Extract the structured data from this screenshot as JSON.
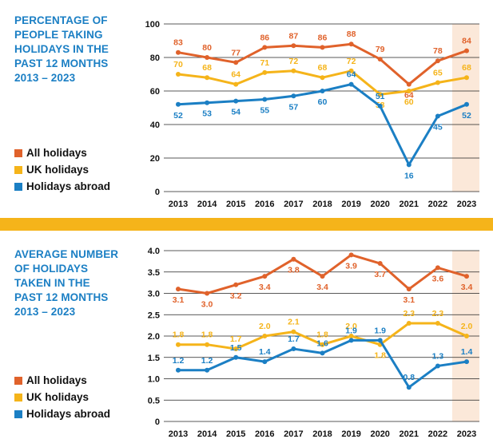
{
  "colors": {
    "all": "#e0622b",
    "uk": "#f5b41a",
    "abroad": "#1b7fc4",
    "highlight": "#fbe8d9",
    "grid": "#222222"
  },
  "charts": [
    {
      "title": "PERCENTAGE OF\nPEOPLE TAKING\nHOLIDAYS IN THE\nPAST 12 MONTHS\n2013 – 2023",
      "legend": [
        "All holidays",
        "UK holidays",
        "Holidays abroad"
      ]
    },
    {
      "title": "AVERAGE NUMBER\nOF HOLIDAYS\nTAKEN IN THE\nPAST 12 MONTHS\n2013 – 2023",
      "legend": [
        "All holidays",
        "UK holidays",
        "Holidays abroad"
      ]
    }
  ],
  "chart_data": [
    {
      "type": "line",
      "title": "PERCENTAGE OF PEOPLE TAKING HOLIDAYS IN THE PAST 12 MONTHS 2013 – 2023",
      "categories": [
        "2013",
        "2014",
        "2015",
        "2016",
        "2017",
        "2018",
        "2019",
        "2020",
        "2021",
        "2022",
        "2023"
      ],
      "ylim": [
        0,
        100
      ],
      "yticks": [
        "0",
        "20",
        "40",
        "60",
        "80",
        "100"
      ],
      "highlight": "2023",
      "series": [
        {
          "name": "All holidays",
          "key": "all",
          "values": [
            83,
            80,
            77,
            86,
            87,
            86,
            88,
            79,
            64,
            78,
            84
          ],
          "labels": [
            "83",
            "80",
            "77",
            "86",
            "87",
            "86",
            "88",
            "79",
            "64",
            "78",
            "84"
          ]
        },
        {
          "name": "UK holidays",
          "key": "uk",
          "values": [
            70,
            68,
            64,
            71,
            72,
            68,
            72,
            58,
            60,
            65,
            68
          ],
          "labels": [
            "70",
            "68",
            "64",
            "71",
            "72",
            "68",
            "72",
            "58",
            "60",
            "65",
            "68"
          ]
        },
        {
          "name": "Holidays abroad",
          "key": "abroad",
          "values": [
            52,
            53,
            54,
            55,
            57,
            60,
            64,
            51,
            16,
            45,
            52
          ],
          "labels": [
            "52",
            "53",
            "54",
            "55",
            "57",
            "60",
            "64",
            "51",
            "16",
            "45",
            "52"
          ]
        }
      ]
    },
    {
      "type": "line",
      "title": "AVERAGE NUMBER OF HOLIDAYS TAKEN IN THE PAST 12 MONTHS 2013 – 2023",
      "categories": [
        "2013",
        "2014",
        "2015",
        "2016",
        "2017",
        "2018",
        "2019",
        "2020",
        "2021",
        "2022",
        "2023"
      ],
      "ylim": [
        0,
        4
      ],
      "yticks": [
        "0",
        "0.5",
        "1.0",
        "1.5",
        "2.0",
        "2.5",
        "3.0",
        "3.5",
        "4.0"
      ],
      "highlight": "2023",
      "series": [
        {
          "name": "All holidays",
          "key": "all",
          "values": [
            3.1,
            3.0,
            3.2,
            3.4,
            3.8,
            3.4,
            3.9,
            3.7,
            3.1,
            3.6,
            3.4
          ],
          "labels": [
            "3.1",
            "3.0",
            "3.2",
            "3.4",
            "3.8",
            "3.4",
            "3.9",
            "3.7",
            "3.1",
            "3.6",
            "3.4"
          ]
        },
        {
          "name": "UK holidays",
          "key": "uk",
          "values": [
            1.8,
            1.8,
            1.7,
            2.0,
            2.1,
            1.8,
            2.0,
            1.8,
            2.3,
            2.3,
            2.0
          ],
          "labels": [
            "1.8",
            "1.8",
            "1.7",
            "2.0",
            "2.1",
            "1.8",
            "2.0",
            "1.8",
            "2.3",
            "2.3",
            "2.0"
          ]
        },
        {
          "name": "Holidays abroad",
          "key": "abroad",
          "values": [
            1.2,
            1.2,
            1.5,
            1.4,
            1.7,
            1.6,
            1.9,
            1.9,
            0.8,
            1.3,
            1.4
          ],
          "labels": [
            "1.2",
            "1.2",
            "1.5",
            "1.4",
            "1.7",
            "1.6",
            "1.9",
            "1.9",
            "0.8",
            "1.3",
            "1.4"
          ]
        }
      ]
    }
  ]
}
